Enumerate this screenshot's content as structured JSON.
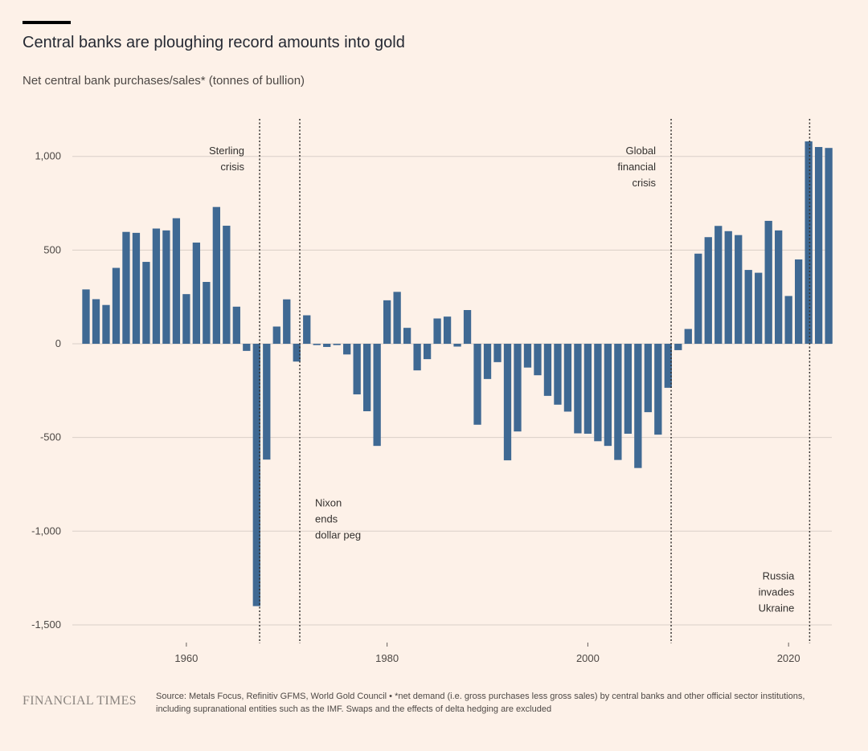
{
  "title": "Central banks are ploughing record amounts into gold",
  "subtitle": "Net central bank purchases/sales* (tonnes of bullion)",
  "footer": {
    "brand": "FINANCIAL TIMES",
    "source": "Source: Metals Focus, Refinitiv GFMS, World Gold Council • *net demand (i.e. gross purchases less gross sales) by central banks and other official sector institutions, including supranational entities such as the IMF. Swaps and the effects of delta hedging are excluded"
  },
  "colors": {
    "bar": "#3f6993",
    "background": "#fdf1e8",
    "grid": "#d9cfc7",
    "annotation_line": "#33302e"
  },
  "chart_data": {
    "type": "bar",
    "xlabel": "",
    "ylabel": "",
    "ylim": [
      -1600,
      1200
    ],
    "xlim": [
      1950,
      2024
    ],
    "y_ticks": [
      1000,
      500,
      0,
      -500,
      -1000,
      -1500
    ],
    "y_tick_labels": [
      "1,000",
      "500",
      "0",
      "-500",
      "-1,000",
      "-1,500"
    ],
    "x_ticks": [
      1960,
      1980,
      2000,
      2020
    ],
    "x_tick_labels": [
      "1960",
      "1980",
      "2000",
      "2020"
    ],
    "grid": true,
    "x": [
      1950,
      1951,
      1952,
      1953,
      1954,
      1955,
      1956,
      1957,
      1958,
      1959,
      1960,
      1961,
      1962,
      1963,
      1964,
      1965,
      1966,
      1967,
      1968,
      1969,
      1970,
      1971,
      1972,
      1973,
      1974,
      1975,
      1976,
      1977,
      1978,
      1979,
      1980,
      1981,
      1982,
      1983,
      1984,
      1985,
      1986,
      1987,
      1988,
      1989,
      1990,
      1991,
      1992,
      1993,
      1994,
      1995,
      1996,
      1997,
      1998,
      1999,
      2000,
      2001,
      2002,
      2003,
      2004,
      2005,
      2006,
      2007,
      2008,
      2009,
      2010,
      2011,
      2012,
      2013,
      2014,
      2015,
      2016,
      2017,
      2018,
      2019,
      2020,
      2021,
      2022,
      2023,
      2024
    ],
    "values": [
      290,
      238,
      207,
      405,
      597,
      592,
      437,
      615,
      605,
      670,
      265,
      540,
      330,
      730,
      630,
      198,
      -38,
      -1400,
      -618,
      92,
      237,
      -95,
      152,
      -7,
      -17,
      -7,
      -57,
      -270,
      -360,
      -545,
      232,
      277,
      85,
      -142,
      -82,
      135,
      145,
      -15,
      180,
      -432,
      -188,
      -98,
      -622,
      -468,
      -127,
      -168,
      -278,
      -325,
      -362,
      -478,
      -480,
      -520,
      -545,
      -620,
      -480,
      -663,
      -365,
      -485,
      -235,
      -34,
      79,
      481,
      569,
      629,
      601,
      580,
      394,
      379,
      656,
      605,
      255,
      450,
      1080,
      1050,
      1045
    ],
    "annotations": [
      {
        "x": 1967.3,
        "lines": [
          "Sterling",
          "crisis"
        ],
        "align": "left",
        "y": 1050
      },
      {
        "x": 1971.3,
        "lines": [
          "Nixon",
          "ends",
          "dollar peg"
        ],
        "align": "right",
        "y": -830
      },
      {
        "x": 2008.3,
        "lines": [
          "Global",
          "financial",
          "crisis"
        ],
        "align": "left",
        "y": 1050
      },
      {
        "x": 2022.1,
        "lines": [
          "Russia",
          "invades",
          "Ukraine"
        ],
        "align": "left",
        "y": -1220
      }
    ]
  }
}
